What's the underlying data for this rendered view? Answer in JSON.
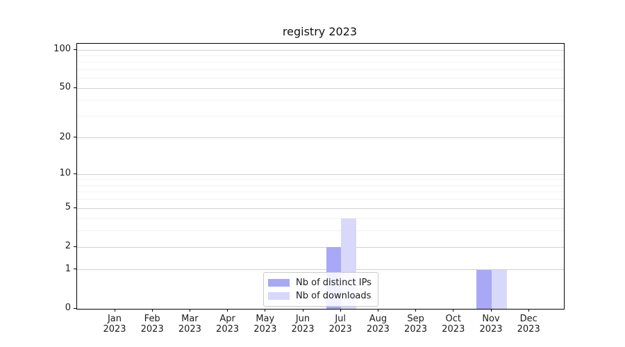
{
  "title": "registry 2023",
  "chart_data": {
    "type": "bar",
    "title": "registry 2023",
    "categories": [
      "Jan",
      "Feb",
      "Mar",
      "Apr",
      "May",
      "Jun",
      "Jul",
      "Aug",
      "Sep",
      "Oct",
      "Nov",
      "Dec"
    ],
    "category_sublabel": "2023",
    "series": [
      {
        "name": "Nb of distinct IPs",
        "color": "#a8a8f6",
        "values": [
          0,
          0,
          0,
          0,
          0,
          0,
          2,
          0,
          0,
          0,
          1,
          0
        ]
      },
      {
        "name": "Nb of downloads",
        "color": "#d8d8fa",
        "values": [
          0,
          0,
          0,
          0,
          0,
          0,
          4,
          0,
          0,
          0,
          1,
          0
        ]
      }
    ],
    "scale": "log1p",
    "ylim": [
      0,
      112
    ],
    "yticks_major": [
      0,
      1,
      2,
      5,
      10,
      20,
      50,
      100
    ],
    "yticks_minor": [
      3,
      4,
      6,
      7,
      8,
      9,
      30,
      40,
      60,
      70,
      80,
      90
    ],
    "grid": "horizontal",
    "legend_position": "lower center"
  },
  "colors": {
    "grid_major": "#d0d0d0",
    "grid_minor": "#f2f2f2",
    "spine": "#000000",
    "background": "#ffffff"
  }
}
